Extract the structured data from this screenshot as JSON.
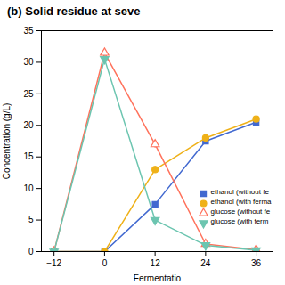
{
  "chart_data": {
    "type": "line",
    "title": "(b) Solid residue at seve",
    "xlabel": "Fermentatio",
    "ylabel": "Concentration (g/L)",
    "x": [
      -12,
      0,
      12,
      24,
      36
    ],
    "xlim": [
      -15,
      40
    ],
    "ylim": [
      0,
      35
    ],
    "xticks": [
      -12,
      0,
      12,
      24,
      36
    ],
    "yticks": [
      0,
      5,
      10,
      15,
      20,
      25,
      30,
      35
    ],
    "legend": "lower right",
    "series": [
      {
        "name": "ethanol (without fe",
        "marker": "square",
        "values": [
          0,
          0.0,
          7.5,
          17.5,
          20.5
        ],
        "yerr": [
          0,
          0,
          0.4,
          0.4,
          0.5
        ]
      },
      {
        "name": "ethanol (with ferma",
        "marker": "circle",
        "values": [
          0,
          0.0,
          13.0,
          18.0,
          21.0
        ],
        "yerr": [
          0,
          0,
          0.5,
          0.3,
          0.4
        ]
      },
      {
        "name": "glucose (without fe",
        "marker": "triangle-open",
        "values": [
          0,
          31.5,
          17.0,
          1.2,
          0.3
        ],
        "yerr": [
          0,
          0.5,
          0.6,
          0.2,
          0.1
        ]
      },
      {
        "name": "glucose (with ferm",
        "marker": "triangle-down",
        "values": [
          0,
          30.5,
          5.0,
          1.0,
          0.2
        ],
        "yerr": [
          0,
          0.5,
          0.4,
          0.15,
          0.1
        ]
      }
    ]
  }
}
